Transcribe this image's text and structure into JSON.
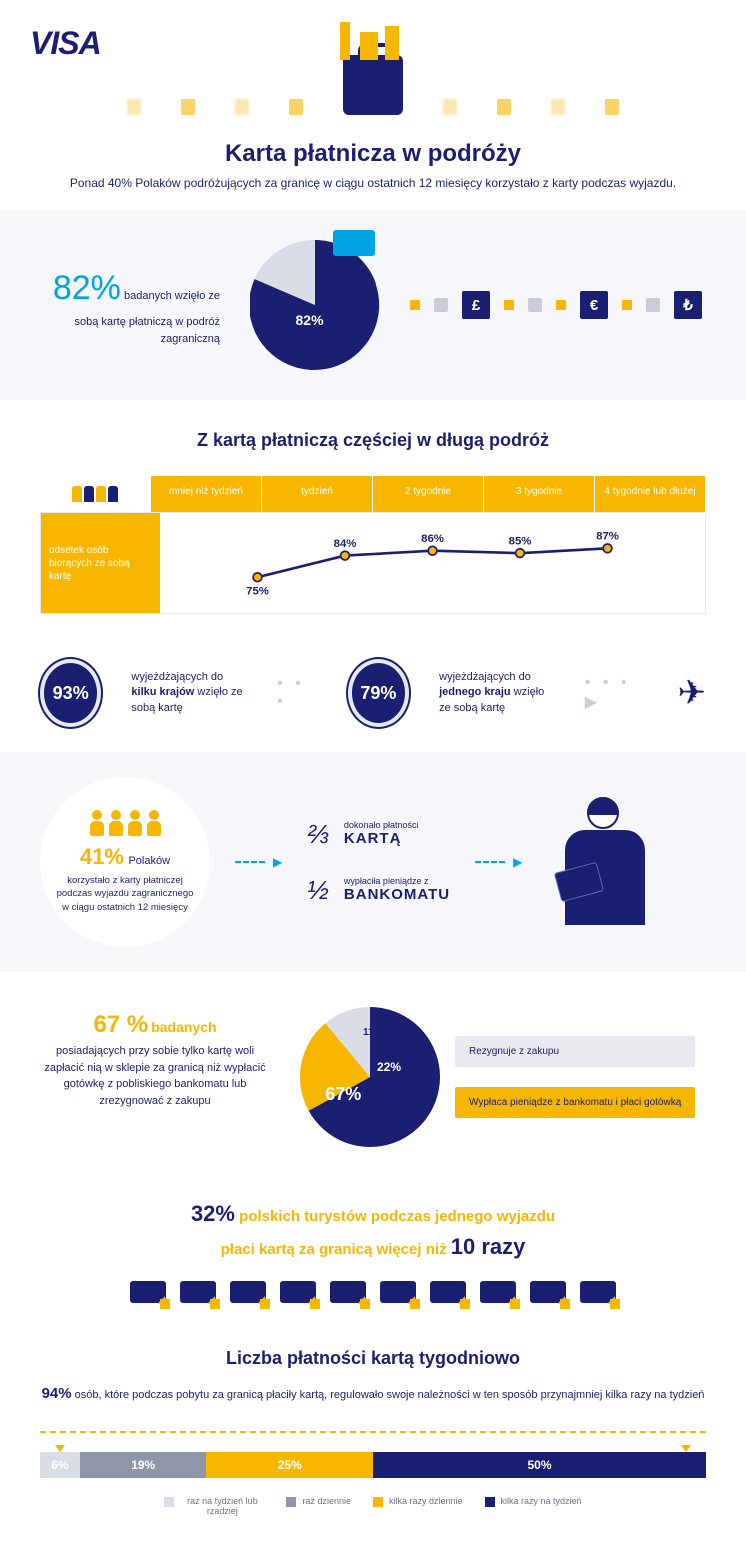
{
  "colors": {
    "navy": "#1a1f71",
    "yellow": "#f7b600",
    "blue": "#00a4e4",
    "lightgrey": "#d9dde5",
    "grey": "#8e96a8",
    "bg": "#f5f7fa"
  },
  "hero": {
    "logo": "VISA",
    "title": "Karta płatnicza w podróży",
    "subtitle": "Ponad 40% Polaków podróżujących za granicę w ciągu ostatnich\n12 miesięcy korzystało z karty podczas wyjazdu."
  },
  "sec1": {
    "pct": "82%",
    "text": "badanych wzięło ze sobą kartę płatniczą w podróż zagraniczną",
    "pie_label": "82%",
    "pie_value": 82,
    "currencies": [
      "£",
      "€",
      "₺"
    ]
  },
  "sec2": {
    "title": "Z kartą płatniczą częściej w długą podróż",
    "y_label": "odsetek osób biorących ze sobą kartę",
    "categories": [
      "mniej niż tydzień",
      "tydzień",
      "2 tygodnie",
      "3 tygodnie",
      "4 tygodnie lub dłużej"
    ],
    "values": [
      75,
      84,
      86,
      85,
      87
    ],
    "stat1": {
      "pct": "93%",
      "txt": "wyjeżdżających do kilku krajów wzięło ze sobą kartę",
      "bold": "kilku krajów"
    },
    "stat2": {
      "pct": "79%",
      "txt": "wyjeżdżających do jednego kraju wzięło ze sobą kartę",
      "bold": "jednego kraju"
    }
  },
  "sec3": {
    "pct": "41%",
    "pct_suffix": "Polaków",
    "txt": "korzystało z karty płatniczej podczas wyjazdu zagranicznego w ciągu ostatnich 12 miesięcy",
    "frac1": {
      "v": "⅔",
      "small": "dokonało płatności",
      "big": "KARTĄ"
    },
    "frac2": {
      "v": "½",
      "small": "wypłaciła pieniądze z",
      "big": "BANKOMATU"
    }
  },
  "sec4": {
    "pct": "67 %",
    "pct_suffix": "badanych",
    "txt": "posiadających przy sobie tylko kartę woli zapłacić nią w sklepie za granicą niż wypłacić gotówkę z pobliskiego bankomatu lub zrezygnować z zakupu",
    "slices": [
      {
        "v": 67,
        "label": "67%",
        "color": "#1a1f71"
      },
      {
        "v": 22,
        "label": "22%",
        "color": "#f7b600"
      },
      {
        "v": 11,
        "label": "11%",
        "color": "#d9dde5"
      }
    ],
    "legend1": "Rezygnuje z zakupu",
    "legend2": "Wypłaca pieniądze z bankomatu i płaci gotówką"
  },
  "sec5": {
    "pct": "32%",
    "line1": "polskich turystów podczas jednego wyjazdu",
    "line2": "płaci kartą za granicą więcej niż",
    "times": "10 razy",
    "card_count": 10
  },
  "sec6": {
    "title": "Liczba płatności kartą tygodniowo",
    "pct": "94%",
    "sub": "osób, które podczas pobytu za granicą płaciły kartą, regulowało swoje należności w ten sposób przynajmniej kilka razy na tydzień",
    "segments": [
      {
        "v": 6,
        "label": "6%",
        "color": "#d9dde5"
      },
      {
        "v": 19,
        "label": "19%",
        "color": "#8e96a8"
      },
      {
        "v": 25,
        "label": "25%",
        "color": "#f7b600"
      },
      {
        "v": 50,
        "label": "50%",
        "color": "#1a1f71"
      }
    ],
    "legend": [
      {
        "c": "#d9dde5",
        "t": "raz na tydzień lub rzadziej"
      },
      {
        "c": "#8e96a8",
        "t": "raz dziennie"
      },
      {
        "c": "#f7b600",
        "t": "kilka razy dziennie"
      },
      {
        "c": "#1a1f71",
        "t": "kilka razy na tydzień"
      }
    ]
  }
}
